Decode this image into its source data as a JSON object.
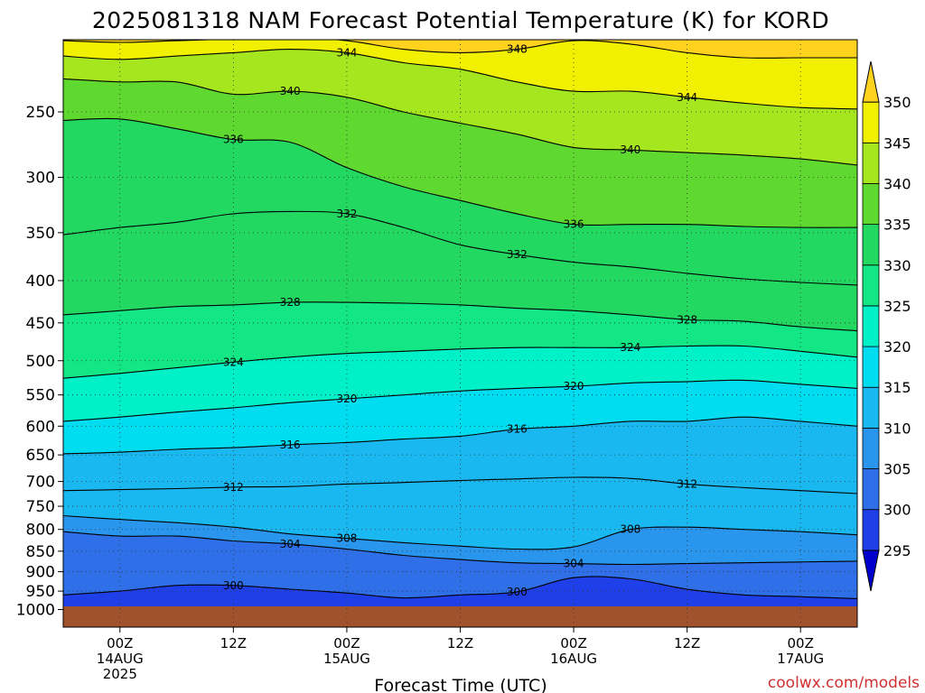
{
  "chart_data": {
    "type": "heatmap",
    "title": "2025081318 NAM Forecast Potential Temperature (K) for KORD",
    "xlabel": "Forecast Time (UTC)",
    "ylabel": "",
    "credit": "coolwx.com/models",
    "y_axis": {
      "scale": "log-pressure",
      "unit": "hPa",
      "ylim": [
        1000,
        200
      ],
      "ticks": [
        250,
        300,
        350,
        400,
        450,
        500,
        550,
        600,
        650,
        700,
        750,
        800,
        850,
        900,
        950,
        1000
      ],
      "tick_labels": [
        "250",
        "300",
        "350",
        "400",
        "450",
        "500",
        "550",
        "600",
        "650",
        "700",
        "750",
        "800",
        "850",
        "900",
        "950",
        "1000"
      ]
    },
    "x_axis": {
      "unit": "forecast hour",
      "xlim": [
        0,
        84
      ],
      "ticks": [
        6,
        18,
        30,
        42,
        54,
        66,
        78
      ],
      "tick_lines": [
        [
          "00Z",
          "14AUG",
          "2025"
        ],
        [
          "12Z"
        ],
        [
          "00Z",
          "15AUG"
        ],
        [
          "12Z"
        ],
        [
          "00Z",
          "16AUG"
        ],
        [
          "12Z"
        ],
        [
          "00Z",
          "17AUG"
        ]
      ]
    },
    "colorbar": {
      "levels": [
        295,
        300,
        305,
        310,
        315,
        320,
        325,
        330,
        335,
        340,
        345,
        350
      ],
      "labels": [
        "295",
        "300",
        "305",
        "310",
        "315",
        "320",
        "325",
        "330",
        "335",
        "340",
        "345",
        "350"
      ],
      "colors": [
        "#0000cc",
        "#1f3fe8",
        "#2f6fe8",
        "#2a95ec",
        "#1ab8f0",
        "#00dcf0",
        "#00f0c8",
        "#12e685",
        "#22d860",
        "#5fd830",
        "#a6e61e",
        "#f0f000",
        "#ffd21e"
      ]
    },
    "isentropes": [
      {
        "value": 300,
        "p": [
          960,
          950,
          935,
          935,
          945,
          955,
          968,
          960,
          952,
          915,
          918,
          945,
          960,
          965,
          970
        ],
        "label": "300"
      },
      {
        "value": 304,
        "p": [
          805,
          815,
          815,
          826,
          833,
          845,
          860,
          870,
          878,
          880,
          882,
          880,
          878,
          876,
          874
        ],
        "label": "304"
      },
      {
        "value": 308,
        "p": [
          770,
          778,
          785,
          795,
          810,
          820,
          830,
          838,
          845,
          840,
          800,
          795,
          800,
          805,
          812
        ],
        "label": "308"
      },
      {
        "value": 312,
        "p": [
          718,
          716,
          714,
          711,
          710,
          705,
          702,
          698,
          695,
          692,
          694,
          705,
          712,
          718,
          724
        ],
        "label": "312"
      },
      {
        "value": 316,
        "p": [
          648,
          645,
          640,
          637,
          632,
          628,
          622,
          617,
          605,
          600,
          592,
          592,
          585,
          592,
          600
        ],
        "label": "316"
      },
      {
        "value": 320,
        "p": [
          592,
          585,
          577,
          570,
          562,
          556,
          550,
          544,
          540,
          537,
          532,
          530,
          528,
          534,
          540
        ],
        "label": "320"
      },
      {
        "value": 324,
        "p": [
          525,
          518,
          510,
          502,
          495,
          490,
          487,
          484,
          482,
          482,
          482,
          480,
          480,
          487,
          495
        ],
        "label": "324"
      },
      {
        "value": 328,
        "p": [
          440,
          435,
          430,
          428,
          425,
          425,
          426,
          428,
          432,
          435,
          440,
          446,
          448,
          455,
          460
        ],
        "label": "328"
      },
      {
        "value": 332,
        "p": [
          352,
          345,
          340,
          332,
          330,
          332,
          345,
          362,
          372,
          380,
          385,
          392,
          398,
          402,
          405
        ],
        "label": "332"
      },
      {
        "value": 336,
        "p": [
          256,
          255,
          262,
          270,
          272,
          292,
          308,
          320,
          332,
          342,
          342,
          342,
          344,
          345,
          345
        ],
        "label": "336"
      },
      {
        "value": 340,
        "p": [
          228,
          230,
          230,
          238,
          236,
          240,
          250,
          258,
          266,
          276,
          278,
          280,
          282,
          285,
          290
        ],
        "label": "340"
      },
      {
        "value": 344,
        "p": [
          214,
          216,
          214,
          212,
          210,
          212,
          218,
          222,
          230,
          236,
          236,
          240,
          244,
          247,
          248
        ],
        "label": "344"
      },
      {
        "value": 348,
        "p": [
          205,
          206,
          205,
          204,
          203,
          205,
          210,
          212,
          210,
          205,
          207,
          212,
          215,
          215,
          215
        ],
        "label": "348"
      }
    ],
    "grid": true,
    "legend_placement": "right-colorbar"
  }
}
